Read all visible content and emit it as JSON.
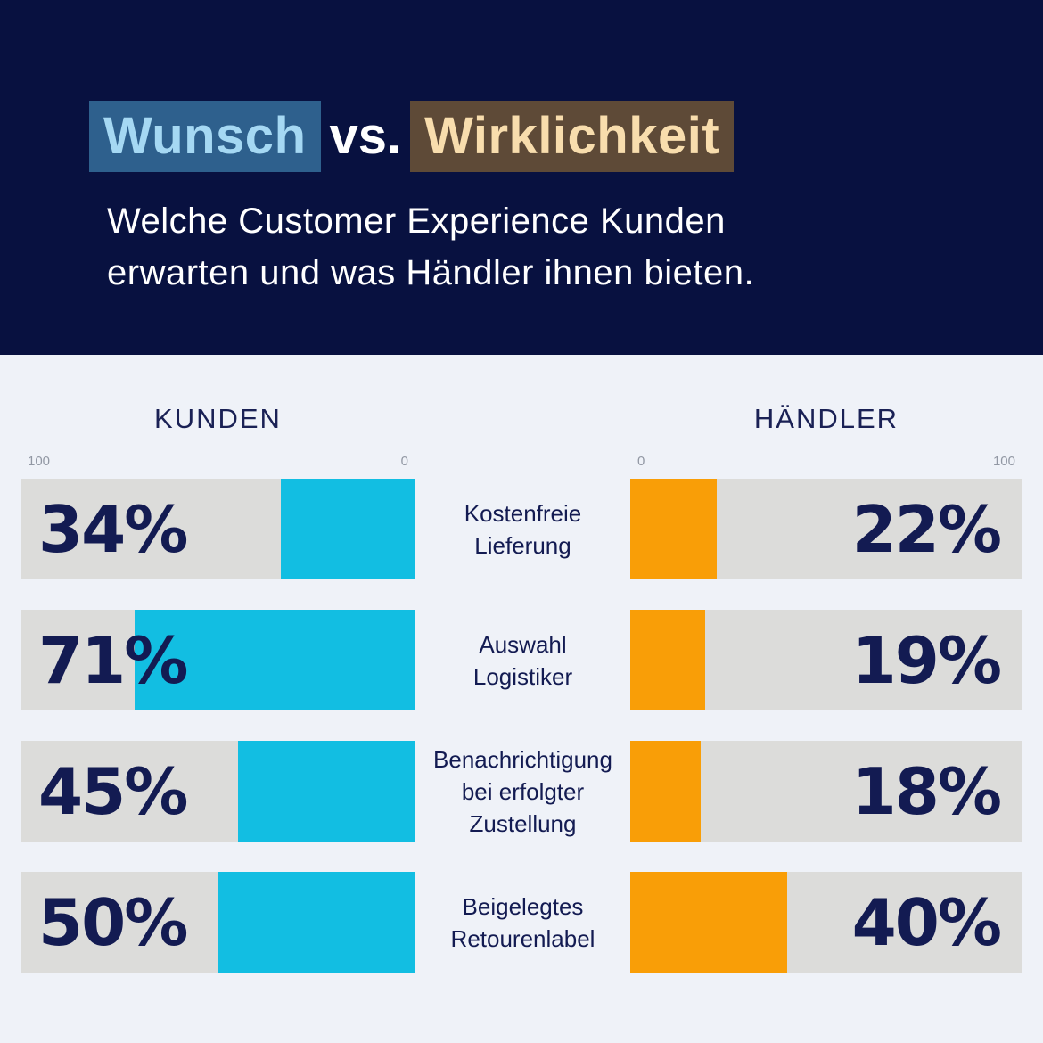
{
  "colors": {
    "header_bg": "#081140",
    "page_bg": "#eff2f8",
    "track_gray": "#dcdcda",
    "cyan": "#12bee2",
    "orange": "#f99e07",
    "navy_text": "#131b52",
    "heading_text": "#1a2155",
    "axis_text": "#9298a4",
    "chip_blue_bg": "#2e608d",
    "chip_blue_text": "#a5d8f3",
    "chip_brown_bg": "#5e4a37",
    "chip_brown_text": "#f8ddad",
    "vs_text": "#ffffff",
    "subtitle_text": "#ffffff"
  },
  "header": {
    "title_highlight1": "Wunsch",
    "title_connector": "vs.",
    "title_highlight2": "Wirklichkeit",
    "subtitle_line1": "Welche Customer Experience Kunden",
    "subtitle_line2": "erwarten und was Händler ihnen bieten."
  },
  "columns": {
    "left_heading": "KUNDEN",
    "right_heading": "HÄNDLER",
    "left_axis_start": "100",
    "left_axis_end": "0",
    "right_axis_start": "0",
    "right_axis_end": "100"
  },
  "rows": [
    {
      "category": "Kostenfreie\nLieferung",
      "kunden_value": 34,
      "kunden_label": "34%",
      "haendler_value": 22,
      "haendler_label": "22%"
    },
    {
      "category": "Auswahl\nLogistiker",
      "kunden_value": 71,
      "kunden_label": "71%",
      "haendler_value": 19,
      "haendler_label": "19%"
    },
    {
      "category": "Benachrichtigung\nbei erfolgter\nZustellung",
      "kunden_value": 45,
      "kunden_label": "45%",
      "haendler_value": 18,
      "haendler_label": "18%"
    },
    {
      "category": "Beigelegtes\nRetourenlabel",
      "kunden_value": 50,
      "kunden_label": "50%",
      "haendler_value": 40,
      "haendler_label": "40%"
    }
  ],
  "chart_data": {
    "type": "bar",
    "title": "Wunsch vs. Wirklichkeit",
    "subtitle": "Welche Customer Experience Kunden erwarten und was Händler ihnen bieten.",
    "orientation": "horizontal-mirrored",
    "categories": [
      "Kostenfreie Lieferung",
      "Auswahl Logistiker",
      "Benachrichtigung bei erfolgter Zustellung",
      "Beigelegtes Retourenlabel"
    ],
    "series": [
      {
        "name": "KUNDEN",
        "values": [
          34,
          71,
          45,
          50
        ],
        "color": "#12bee2",
        "direction": "right-to-left"
      },
      {
        "name": "HÄNDLER",
        "values": [
          22,
          19,
          18,
          40
        ],
        "color": "#f99e07",
        "direction": "left-to-right"
      }
    ],
    "unit": "%",
    "axis_range": [
      0,
      100
    ],
    "grid": false,
    "legend_position": "column-headings"
  }
}
